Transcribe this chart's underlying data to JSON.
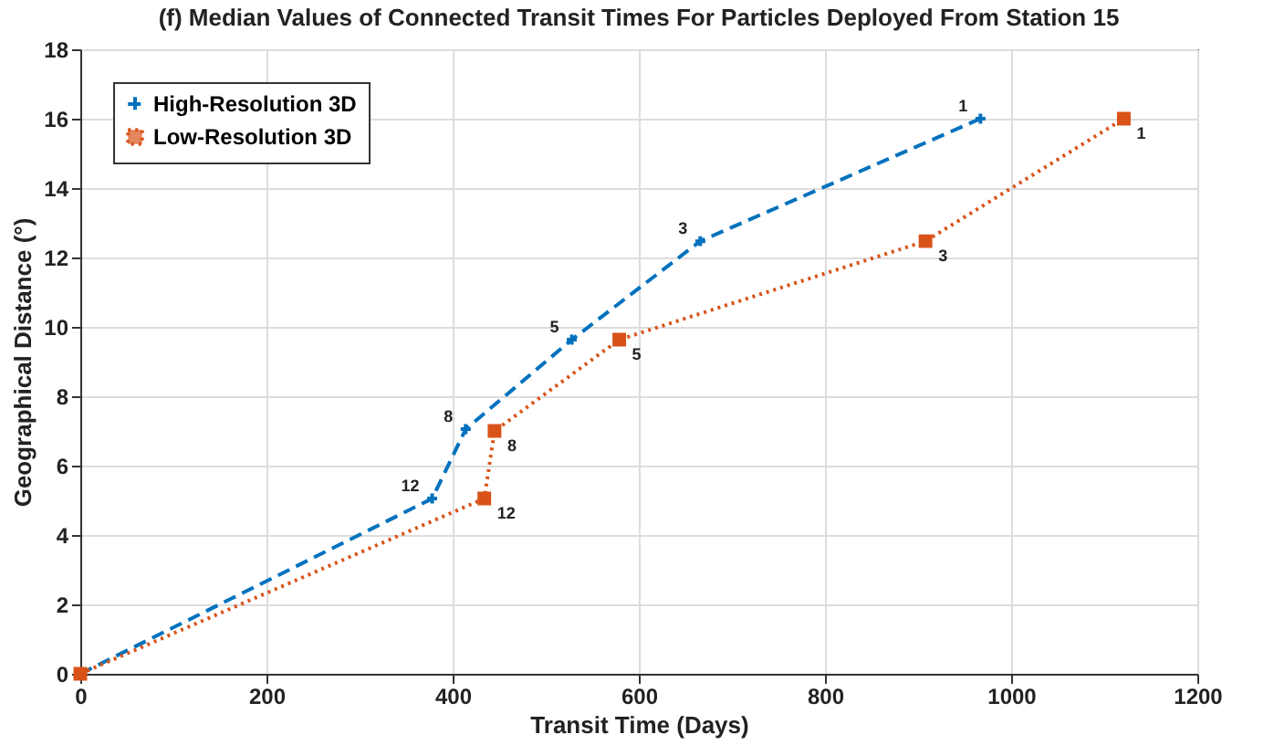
{
  "chart_data": {
    "type": "line",
    "title": "(f) Median Values of Connected Transit Times For Particles Deployed From Station 15",
    "xlabel": "Transit Time (Days)",
    "ylabel": "Geographical Distance (°)",
    "xlim": [
      0,
      1200
    ],
    "xticks": [
      0,
      200,
      400,
      600,
      800,
      1000,
      1200
    ],
    "ylim": [
      0,
      18
    ],
    "yticks": [
      0,
      2,
      4,
      6,
      8,
      10,
      12,
      14,
      16,
      18
    ],
    "grid": true,
    "legend": "top left",
    "series": [
      {
        "name": "High-Resolution 3D",
        "color": "#0072bd",
        "marker": "cross",
        "line_style": "dashed",
        "x": [
          0,
          378,
          414,
          528,
          666,
          967
        ],
        "values": [
          0,
          5.05,
          7.05,
          9.63,
          12.47,
          16
        ]
      },
      {
        "name": "Low-Resolution 3D",
        "color": "#d95319",
        "marker": "square",
        "line_style": "dotted",
        "x": [
          0,
          434,
          445,
          579,
          908,
          1121
        ],
        "values": [
          0,
          5.05,
          7.0,
          9.63,
          12.47,
          16
        ]
      }
    ],
    "annotations": [
      {
        "text": "12",
        "x": 378,
        "y": 5.05
      },
      {
        "text": "8",
        "x": 414,
        "y": 7.05
      },
      {
        "text": "5",
        "x": 528,
        "y": 9.63
      },
      {
        "text": "3",
        "x": 666,
        "y": 12.47
      },
      {
        "text": "1",
        "x": 967,
        "y": 16
      },
      {
        "text": "12",
        "x": 434,
        "y": 5.05
      },
      {
        "text": "8",
        "x": 445,
        "y": 7.0
      },
      {
        "text": "5",
        "x": 579,
        "y": 9.63
      },
      {
        "text": "3",
        "x": 908,
        "y": 12.47
      },
      {
        "text": "1",
        "x": 1121,
        "y": 16
      }
    ]
  }
}
